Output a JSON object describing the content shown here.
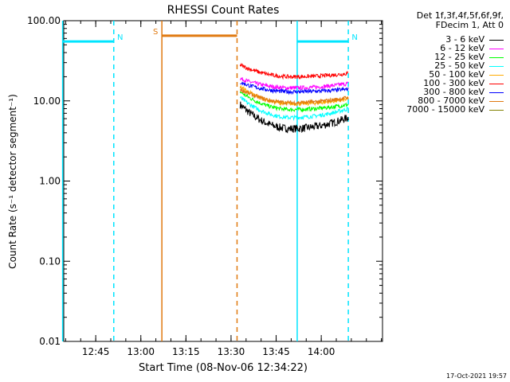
{
  "chart_data": {
    "type": "line",
    "title": "RHESSI Count Rates",
    "xlabel": "Start Time (08-Nov-06 12:34:22)",
    "ylabel": "Count Rate (s⁻¹ detector segment⁻¹)",
    "ylog": true,
    "ylim": [
      0.01,
      100
    ],
    "xlim_minutes_after_start": [
      0,
      106
    ],
    "x_ticks": [
      "12:45",
      "13:00",
      "13:15",
      "13:30",
      "13:45",
      "14:00"
    ],
    "y_ticks": [
      "100.00",
      "10.00",
      "1.00",
      "0.10",
      "0.01"
    ],
    "legend_header": [
      "Det 1f,3f,4f,5f,6f,9f,",
      "FDecim 1, Att 0"
    ],
    "series": [
      {
        "name": "3 - 6 keV",
        "color": "#000000",
        "x_start": "13:33",
        "x_end": "14:09",
        "y_start": 9.0,
        "y_min": 4.5,
        "y_min_at": "13:50",
        "y_end": 6.2
      },
      {
        "name": "6 - 12 keV",
        "color": "#ff00ff",
        "x_start": "13:33",
        "x_end": "14:09",
        "y_start": 19.0,
        "y_min": 14.5,
        "y_min_at": "13:50",
        "y_end": 16.5
      },
      {
        "name": "12 - 25 keV",
        "color": "#00ff00",
        "x_start": "13:33",
        "x_end": "14:09",
        "y_start": 13.0,
        "y_min": 7.8,
        "y_min_at": "13:50",
        "y_end": 9.0
      },
      {
        "name": "25 - 50 keV",
        "color": "#00ffff",
        "x_start": "13:33",
        "x_end": "14:09",
        "y_start": 11.0,
        "y_min": 6.2,
        "y_min_at": "13:50",
        "y_end": 8.0
      },
      {
        "name": "50 - 100 keV",
        "color": "#ffaa00",
        "x_start": "13:33",
        "x_end": "14:09",
        "y_start": 15.0,
        "y_min": 9.2,
        "y_min_at": "13:50",
        "y_end": 10.5
      },
      {
        "name": "100 - 300 keV",
        "color": "#ff0000",
        "x_start": "13:33",
        "x_end": "14:09",
        "y_start": 28.0,
        "y_min": 20.0,
        "y_min_at": "13:50",
        "y_end": 22.0
      },
      {
        "name": "300 - 800 keV",
        "color": "#0000ff",
        "x_start": "13:33",
        "x_end": "14:09",
        "y_start": 17.0,
        "y_min": 13.0,
        "y_min_at": "13:50",
        "y_end": 14.0
      },
      {
        "name": "800 - 7000 keV",
        "color": "#e07a10",
        "x_start": "13:33",
        "x_end": "14:09",
        "y_start": 14.0,
        "y_min": 9.5,
        "y_min_at": "13:50",
        "y_end": 11.0
      },
      {
        "name": "7000 - 15000 keV",
        "color": "#808000",
        "x_start": "13:33",
        "x_end": "14:09",
        "y_start": null,
        "y_min": null,
        "y_min_at": null,
        "y_end": null
      }
    ],
    "annotations": [
      {
        "label": "N",
        "color": "#00e5ff",
        "style": "segment",
        "x_start": "12:34",
        "x_end": "12:51",
        "y": 55
      },
      {
        "label": "N",
        "color": "#00e5ff",
        "style": "segment",
        "x_start": "13:52",
        "x_end": "14:09",
        "y": 55
      },
      {
        "label": "S",
        "color": "#e07a10",
        "style": "segment",
        "x_start": "13:07",
        "x_end": "13:32",
        "y": 65
      }
    ],
    "vertical_markers": [
      {
        "x": "12:34",
        "color": "#00e5ff",
        "dash": false
      },
      {
        "x": "12:51",
        "color": "#00e5ff",
        "dash": true
      },
      {
        "x": "13:07",
        "color": "#e07a10",
        "dash": false
      },
      {
        "x": "13:32",
        "color": "#e07a10",
        "dash": true
      },
      {
        "x": "13:52",
        "color": "#00e5ff",
        "dash": false
      },
      {
        "x": "14:09",
        "color": "#00e5ff",
        "dash": true
      }
    ],
    "grid": false,
    "legend_position": "top-right"
  },
  "timestamp": "17-Oct-2021 19:57"
}
